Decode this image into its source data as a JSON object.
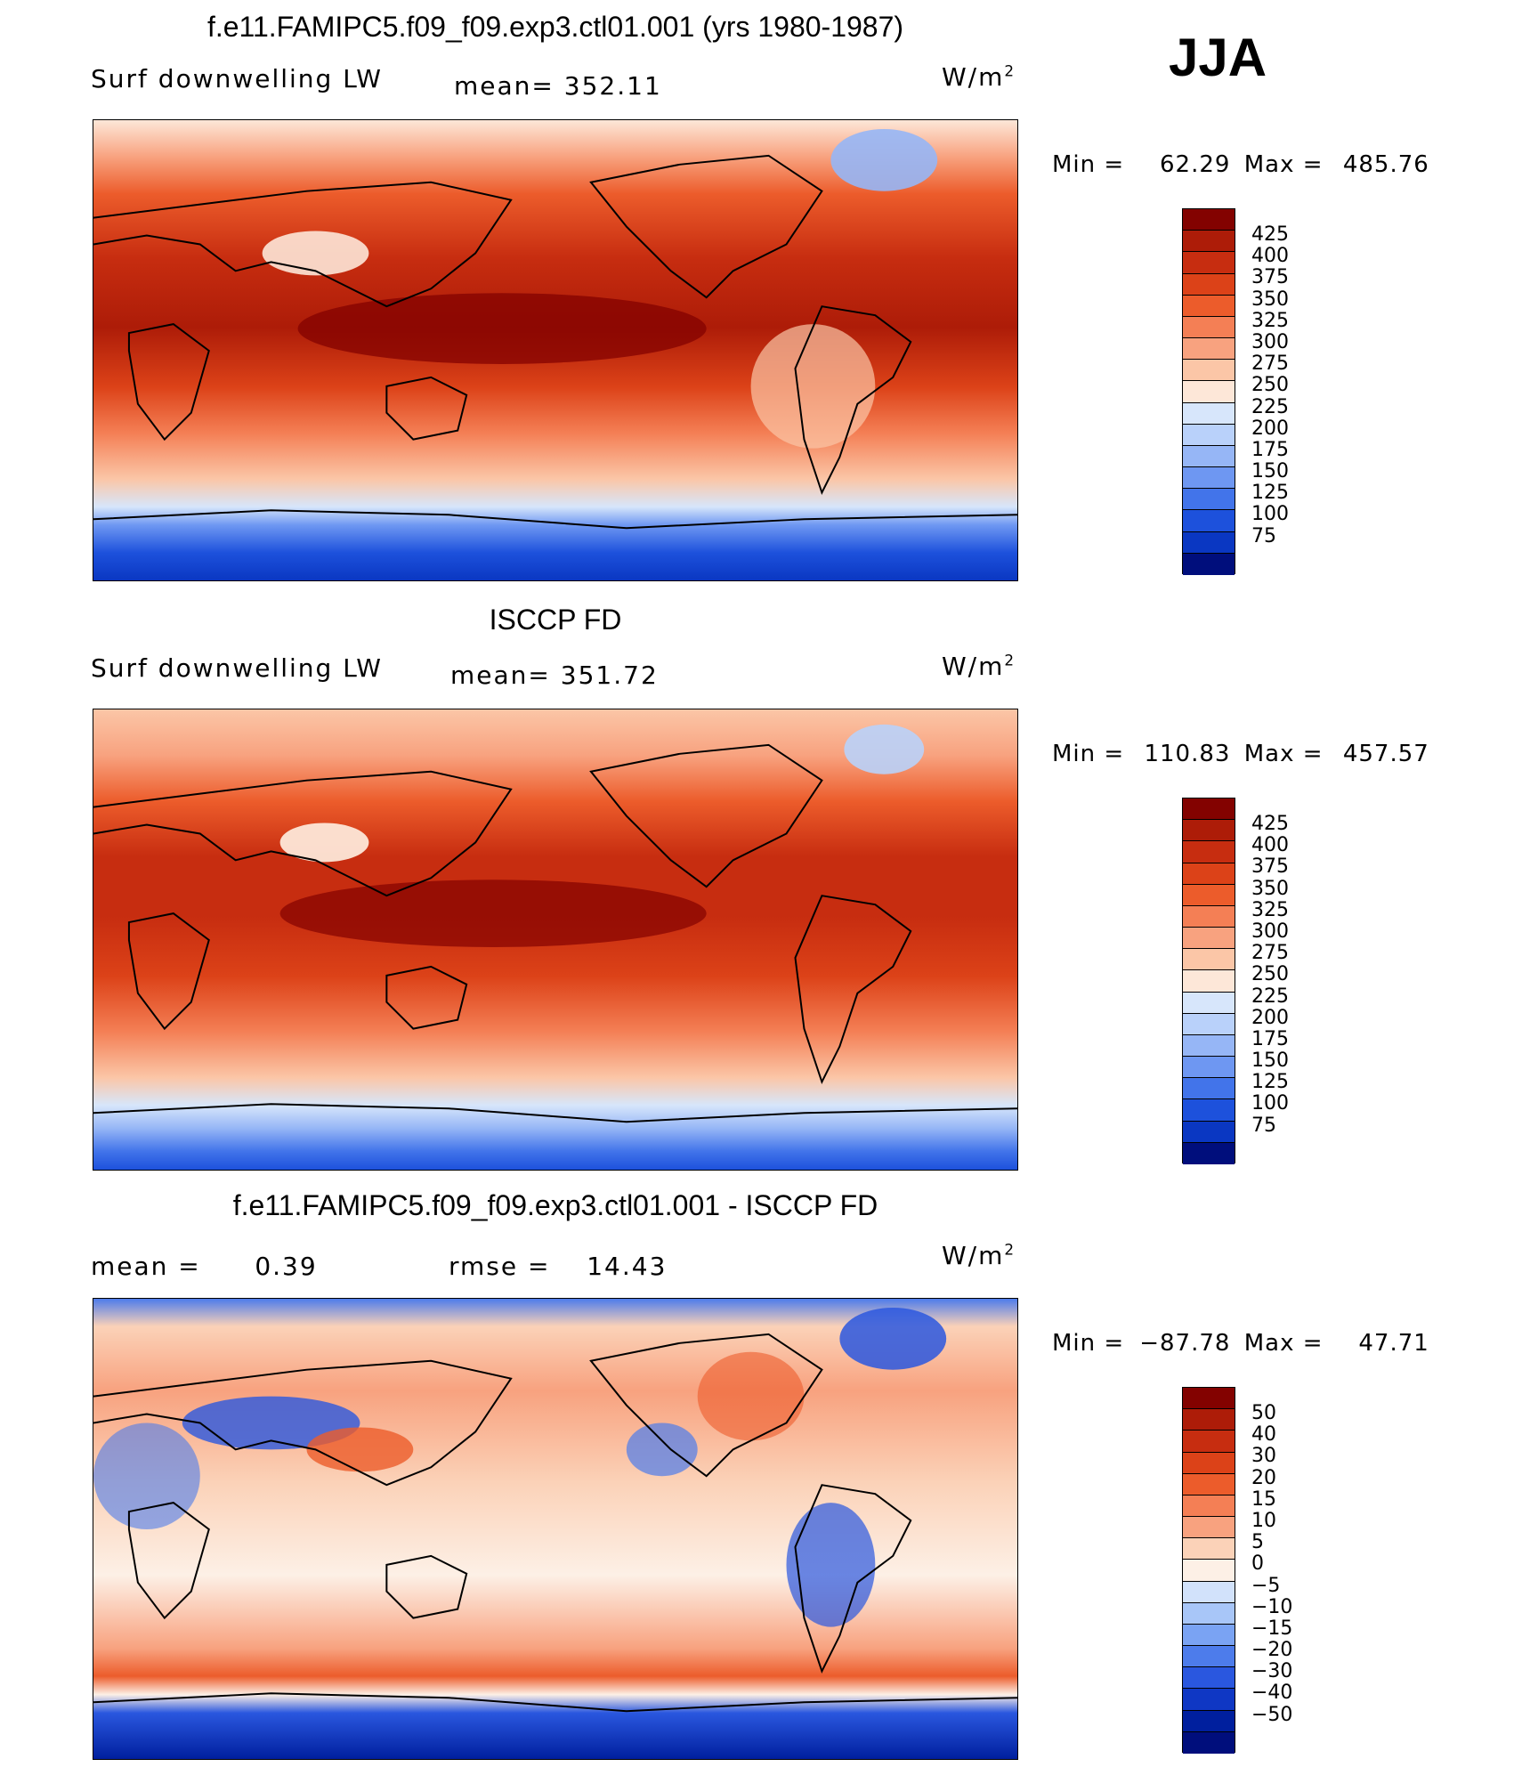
{
  "season": "JJA",
  "colors": {
    "levels14": [
      "#000e7c",
      "#001ea6",
      "#0034c8",
      "#0f4de0",
      "#2b6bf0",
      "#5089f5",
      "#7aa6f7",
      "#a6c4f8",
      "#cee0fa",
      "#fde9dc",
      "#fbc9a8",
      "#f6a27a",
      "#f07a4f",
      "#e8522a",
      "#d23a17",
      "#ad1c08",
      "#830200"
    ],
    "land": "none"
  },
  "panels": [
    {
      "title": "f.e11.FAMIPC5.f09_f09.exp3.ctl01.001 (yrs 1980-1987)",
      "variable": "Surf downwelling LW",
      "mean_label": "mean=",
      "mean_value": "352.11",
      "units": "W/m",
      "units_sup": "2",
      "min_label": "Min =",
      "min_value": "62.29",
      "max_label": "Max =",
      "max_value": "485.76",
      "levels": [
        "425",
        "400",
        "375",
        "350",
        "325",
        "300",
        "275",
        "250",
        "225",
        "200",
        "175",
        "150",
        "125",
        "100",
        "75"
      ],
      "colors": [
        "#830200",
        "#ad1c08",
        "#c72d10",
        "#dc4218",
        "#ec5c2b",
        "#f47f55",
        "#f8a27f",
        "#fbc6a7",
        "#fde7d8",
        "#d7e6fb",
        "#b9d1fa",
        "#96b6f6",
        "#6e97f2",
        "#4274ea",
        "#1d51dc",
        "#0a37c2",
        "#000e7c"
      ]
    },
    {
      "title": "ISCCP FD",
      "variable": "Surf downwelling LW",
      "mean_label": "mean=",
      "mean_value": "351.72",
      "units": "W/m",
      "units_sup": "2",
      "min_label": "Min =",
      "min_value": "110.83",
      "max_label": "Max =",
      "max_value": "457.57",
      "levels": [
        "425",
        "400",
        "375",
        "350",
        "325",
        "300",
        "275",
        "250",
        "225",
        "200",
        "175",
        "150",
        "125",
        "100",
        "75"
      ],
      "colors": [
        "#830200",
        "#ad1c08",
        "#c72d10",
        "#dc4218",
        "#ec5c2b",
        "#f47f55",
        "#f8a27f",
        "#fbc6a7",
        "#fde7d8",
        "#d7e6fb",
        "#b9d1fa",
        "#96b6f6",
        "#6e97f2",
        "#4274ea",
        "#1d51dc",
        "#0a37c2",
        "#000e7c"
      ]
    },
    {
      "title": "f.e11.FAMIPC5.f09_f09.exp3.ctl01.001 - ISCCP FD",
      "mean_label": "mean =",
      "mean_value": "0.39",
      "rmse_label": "rmse =",
      "rmse_value": "14.43",
      "units": "W/m",
      "units_sup": "2",
      "min_label": "Min =",
      "min_value": "−87.78",
      "max_label": "Max =",
      "max_value": "47.71",
      "levels": [
        "50",
        "40",
        "30",
        "20",
        "15",
        "10",
        "5",
        "0",
        "−5",
        "−10",
        "−15",
        "−20",
        "−30",
        "−40",
        "−50"
      ],
      "colors": [
        "#830200",
        "#ad1c08",
        "#c72d10",
        "#dc4218",
        "#ec5c2b",
        "#f47f55",
        "#f8a27f",
        "#fbd2b8",
        "#fdf0e6",
        "#d2e2fb",
        "#a8c6f8",
        "#7aa3f3",
        "#4d7ceb",
        "#2a57df",
        "#0f37c4",
        "#001f9e",
        "#000e7c"
      ]
    }
  ]
}
